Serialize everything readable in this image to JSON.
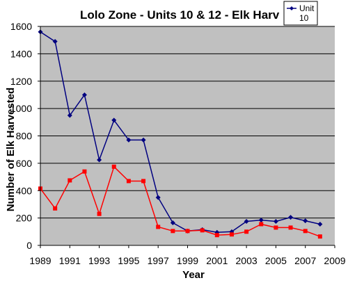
{
  "chart_data": {
    "type": "line",
    "title": "Lolo Zone - Units 10 & 12 - Elk Harv",
    "xlabel": "Year",
    "ylabel": "Number of Elk Harvested",
    "xlim": [
      1989,
      2009
    ],
    "ylim": [
      0,
      1600
    ],
    "x_ticks": [
      1989,
      1991,
      1993,
      1995,
      1997,
      1999,
      2001,
      2003,
      2005,
      2007,
      2009
    ],
    "y_ticks": [
      0,
      200,
      400,
      600,
      800,
      1000,
      1200,
      1400,
      1600
    ],
    "grid": "horizontal",
    "legend": "top-right",
    "x": [
      1989,
      1990,
      1991,
      1992,
      1993,
      1994,
      1995,
      1996,
      1997,
      1998,
      1999,
      2000,
      2001,
      2002,
      2003,
      2004,
      2005,
      2006,
      2007,
      2008
    ],
    "series": [
      {
        "name": "Unit 10",
        "color": "#000080",
        "marker": "diamond",
        "values": [
          1560,
          1490,
          950,
          1100,
          625,
          915,
          770,
          770,
          350,
          165,
          105,
          115,
          95,
          100,
          175,
          185,
          175,
          205,
          180,
          155
        ]
      },
      {
        "color": "#ff0000",
        "marker": "square",
        "values": [
          415,
          270,
          475,
          540,
          230,
          575,
          470,
          470,
          135,
          105,
          105,
          110,
          75,
          80,
          100,
          155,
          130,
          130,
          105,
          65
        ]
      }
    ]
  }
}
